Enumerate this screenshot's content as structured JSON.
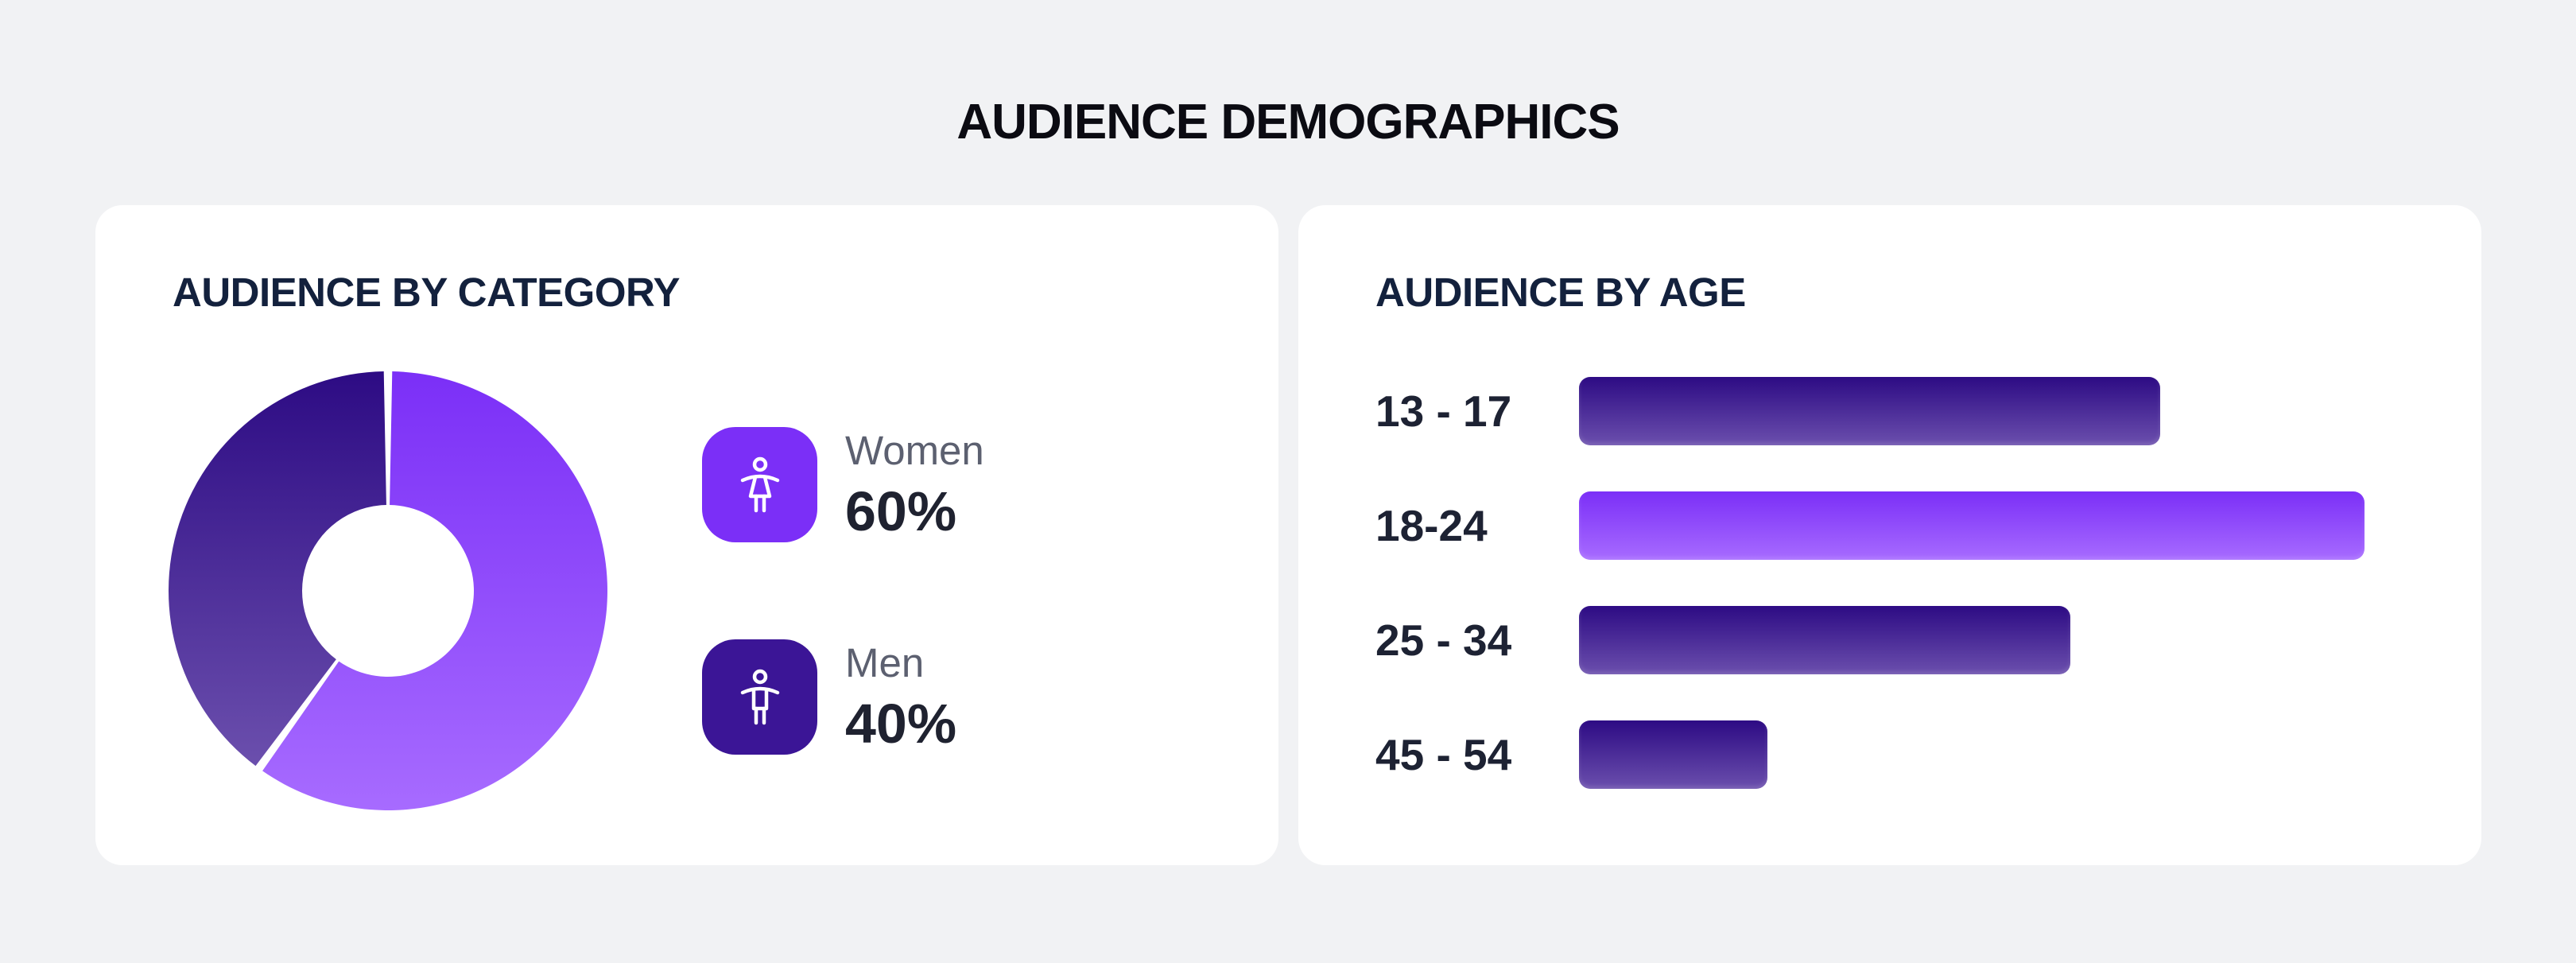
{
  "page_title": "AUDIENCE DEMOGRAPHICS",
  "colors": {
    "dark_purple_top": "#2d0b84",
    "dark_purple_bottom": "#6b4fad",
    "bright_purple_top": "#7b2ff7",
    "bright_purple_bottom": "#a76bff",
    "background": "#f1f2f4"
  },
  "chart_data": [
    {
      "type": "pie",
      "title": "AUDIENCE BY CATEGORY",
      "style": "donut",
      "slices": [
        {
          "label": "Women",
          "value": 60,
          "display": "60%",
          "icon": "female-figure-icon",
          "color": "#7b2ff7"
        },
        {
          "label": "Men",
          "value": 40,
          "display": "40%",
          "icon": "male-figure-icon",
          "color": "#3b1596"
        }
      ]
    },
    {
      "type": "bar",
      "orientation": "horizontal",
      "title": "AUDIENCE BY AGE",
      "categories": [
        "13 - 17",
        "18-24",
        "25 - 34",
        "45 - 54"
      ],
      "values": [
        74,
        100,
        62.5,
        24
      ],
      "highlight_index": 1
    }
  ]
}
